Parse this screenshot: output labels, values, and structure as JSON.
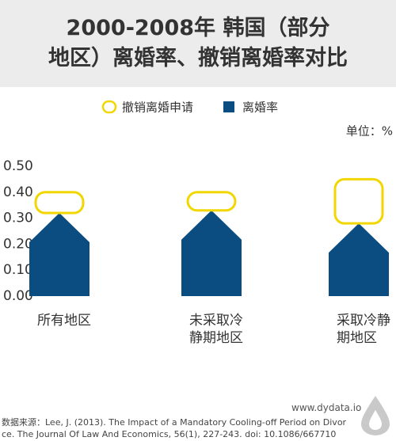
{
  "chart_data": {
    "type": "stacked-bar",
    "title_lines": [
      "2000-2008年 韩国（部分",
      "地区）离婚率、撤销离婚率对比"
    ],
    "unit": "单位：%",
    "categories": [
      "所有地区",
      "未采取冷静期地区",
      "采取冷静期地区"
    ],
    "series": [
      {
        "name": "离婚率",
        "color": "#0b4d80",
        "values": [
          0.32,
          0.33,
          0.28
        ]
      },
      {
        "name": "撤销离婚申请",
        "color": "#f2d600",
        "values": [
          0.08,
          0.07,
          0.17
        ]
      }
    ],
    "ylim": [
      0,
      0.5
    ],
    "yticks": [
      {
        "value": 0,
        "label": "0.00"
      },
      {
        "value": 0.1,
        "label": "0.10"
      },
      {
        "value": 0.2,
        "label": "0.20"
      },
      {
        "value": 0.3,
        "label": "0.30"
      },
      {
        "value": 0.4,
        "label": "0.40"
      },
      {
        "value": 0.5,
        "label": "0.50"
      }
    ]
  },
  "footer": {
    "site": "www.dydata.io",
    "source": "数据来源：Lee, J. (2013). The Impact of a Mandatory Cooling-off Period on Divorce. The Journal Of Law And Economics, 56(1), 227-243. doi: 10.1086/667710"
  }
}
